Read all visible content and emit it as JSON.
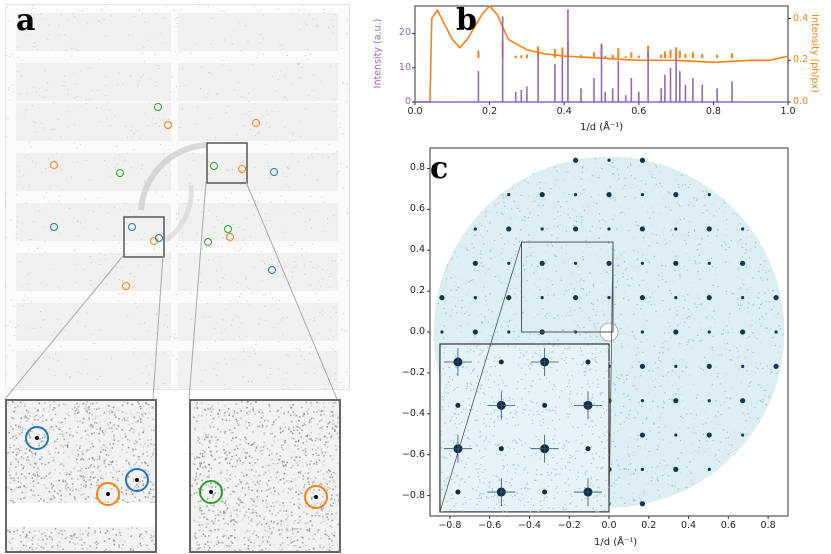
{
  "panels": {
    "a": {
      "letter": "a"
    },
    "b": {
      "letter": "b",
      "xlabel": "1/d (Å⁻¹)",
      "ylabel_left": "Intensity (a.u.)",
      "ylabel_right": "Intensity (ph/px)",
      "xticks": [
        "0.0",
        "0.2",
        "0.4",
        "0.6",
        "0.8",
        "1.0"
      ],
      "yticks_left": [
        "0",
        "10",
        "20"
      ],
      "yticks_right": [
        "0.0",
        "0.2",
        "0.4"
      ],
      "colors": {
        "left": "#9467bd",
        "right": "#ff7f0e"
      }
    },
    "c": {
      "letter": "c",
      "xlabel": "1/d (Å⁻¹)",
      "xticks": [
        "−0.8",
        "−0.6",
        "−0.4",
        "−0.2",
        "0.0",
        "0.2",
        "0.4",
        "0.6",
        "0.8"
      ],
      "yticks": [
        "0.8",
        "0.6",
        "0.4",
        "0.2",
        "0.0",
        "−0.2",
        "−0.4",
        "−0.6",
        "−0.8"
      ],
      "color": "#1f4e6e"
    }
  },
  "chart_data": [
    {
      "type": "line",
      "xlabel": "1/d (Å⁻¹)",
      "ylabel": "Intensity (a.u.)",
      "xlim": [
        0.0,
        1.0
      ],
      "ylim_left": [
        0,
        28
      ],
      "ylim_right": [
        0,
        0.46
      ],
      "series": [
        {
          "axis": "left",
          "peaks_x": [
            0.17,
            0.235,
            0.27,
            0.285,
            0.3,
            0.33,
            0.375,
            0.395,
            0.41,
            0.445,
            0.48,
            0.5,
            0.51,
            0.53,
            0.545,
            0.565,
            0.58,
            0.6,
            0.625,
            0.66,
            0.67,
            0.685,
            0.7,
            0.71,
            0.725,
            0.745,
            0.77,
            0.81,
            0.85
          ],
          "peaks_y": [
            9,
            25,
            3,
            3.5,
            4.5,
            14,
            11,
            13,
            27,
            4,
            7,
            17,
            3,
            4,
            12,
            2,
            7,
            3,
            15,
            4,
            8,
            10,
            13,
            9,
            5,
            7,
            5,
            4,
            6
          ]
        },
        {
          "axis": "right",
          "x": [
            0.0,
            0.04,
            0.045,
            0.06,
            0.08,
            0.1,
            0.12,
            0.14,
            0.16,
            0.18,
            0.2,
            0.22,
            0.235,
            0.25,
            0.3,
            0.35,
            0.4,
            0.5,
            0.6,
            0.7,
            0.8,
            0.9,
            0.95,
            1.0
          ],
          "y": [
            0.0,
            0.0,
            0.4,
            0.44,
            0.37,
            0.3,
            0.26,
            0.3,
            0.36,
            0.42,
            0.46,
            0.42,
            0.36,
            0.3,
            0.25,
            0.23,
            0.22,
            0.21,
            0.2,
            0.2,
            0.19,
            0.2,
            0.2,
            0.22
          ]
        }
      ]
    },
    {
      "type": "scatter",
      "xlabel": "1/d (Å⁻¹)",
      "xlim": [
        -0.9,
        0.9
      ],
      "ylim": [
        -0.9,
        0.9
      ],
      "lattice_spacing": 0.168
    }
  ]
}
